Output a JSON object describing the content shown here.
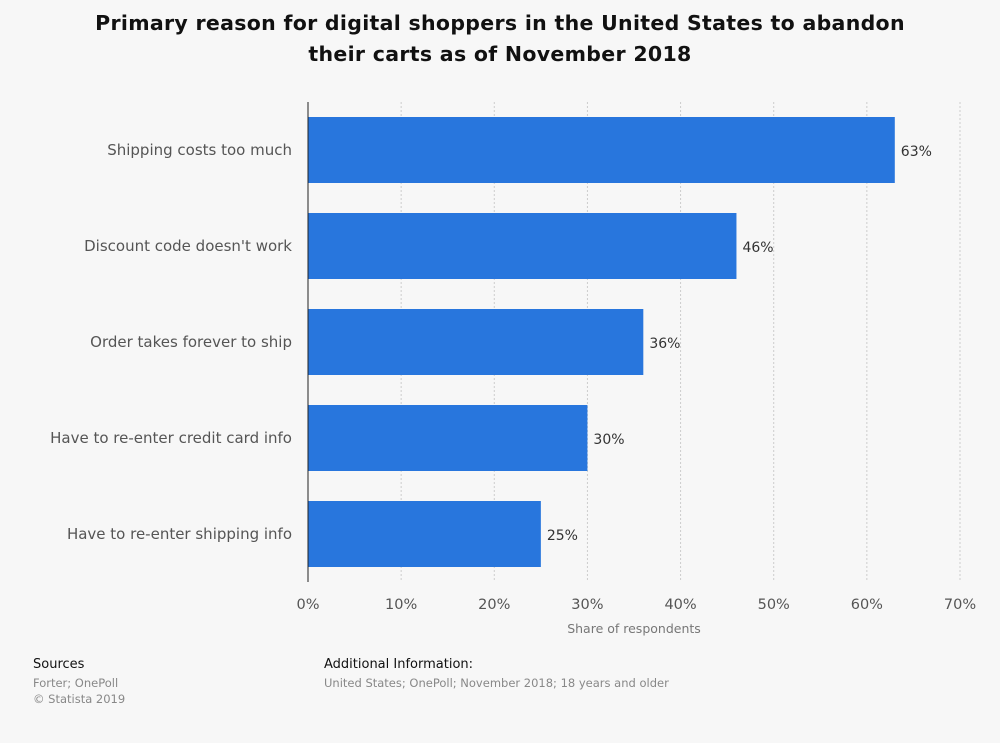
{
  "title_line1": "Primary reason for digital shoppers in the United States to abandon",
  "title_line2": "their carts as of November 2018",
  "chart_data": {
    "type": "bar",
    "orientation": "horizontal",
    "categories": [
      "Shipping costs too much",
      "Discount code doesn't work",
      "Order takes forever to ship",
      "Have to re-enter credit card info",
      "Have to re-enter shipping info"
    ],
    "values": [
      63,
      46,
      36,
      30,
      25
    ],
    "data_labels": [
      "63%",
      "46%",
      "36%",
      "30%",
      "25%"
    ],
    "xlabel": "Share of respondents",
    "xlim": [
      0,
      70
    ],
    "xticks": [
      0,
      10,
      20,
      30,
      40,
      50,
      60,
      70
    ],
    "xtick_labels": [
      "0%",
      "10%",
      "20%",
      "30%",
      "40%",
      "50%",
      "60%",
      "70%"
    ],
    "grid": true,
    "bar_color": "#2876dd",
    "grid_color": "#cccccc"
  },
  "footer": {
    "sources_heading": "Sources",
    "sources_line1": "Forter; OnePoll",
    "sources_line2": "© Statista 2019",
    "additional_heading": "Additional Information:",
    "additional_text": "United States; OnePoll; November 2018; 18 years and older"
  }
}
